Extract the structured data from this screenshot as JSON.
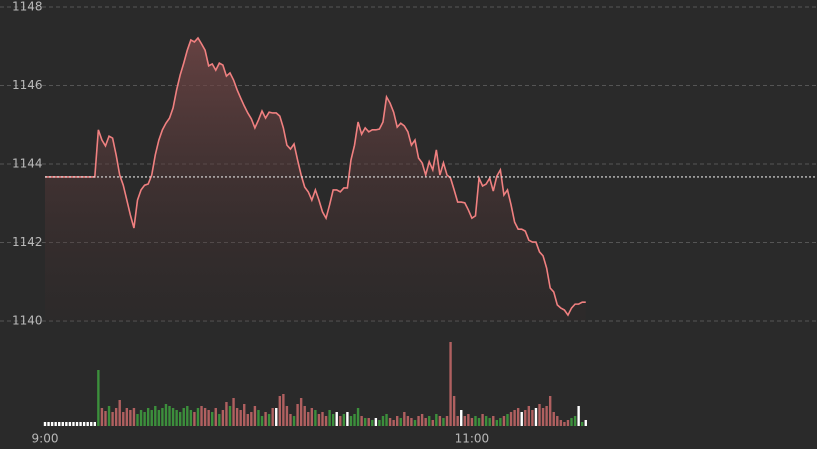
{
  "chart_data": {
    "type": "stock",
    "ylim": [
      1140,
      1148
    ],
    "yticks": [
      1140,
      1142,
      1144,
      1146,
      1148
    ],
    "grid": true,
    "xlim": [
      0,
      217
    ],
    "xticks": [
      {
        "value": 0,
        "label": "9:00"
      },
      {
        "value": 120,
        "label": "11:00"
      }
    ],
    "baseline": 1143.67,
    "color": "#f08080",
    "up_color": "#3c8f3c",
    "down_color": "#b06060",
    "flat_color": "#ffffff",
    "values": [
      1143.67,
      1143.67,
      1143.67,
      1143.67,
      1143.67,
      1143.67,
      1143.67,
      1143.67,
      1143.67,
      1143.67,
      1143.67,
      1143.67,
      1143.67,
      1143.67,
      1143.67,
      1144.87,
      1144.61,
      1144.46,
      1144.71,
      1144.66,
      1144.23,
      1143.72,
      1143.46,
      1143.08,
      1142.7,
      1142.37,
      1143.08,
      1143.34,
      1143.46,
      1143.49,
      1143.72,
      1144.23,
      1144.61,
      1144.87,
      1145.04,
      1145.17,
      1145.43,
      1145.89,
      1146.27,
      1146.57,
      1146.9,
      1147.16,
      1147.11,
      1147.21,
      1147.06,
      1146.9,
      1146.5,
      1146.55,
      1146.39,
      1146.57,
      1146.52,
      1146.24,
      1146.32,
      1146.14,
      1145.89,
      1145.68,
      1145.48,
      1145.3,
      1145.15,
      1144.92,
      1145.12,
      1145.35,
      1145.17,
      1145.32,
      1145.3,
      1145.3,
      1145.22,
      1144.92,
      1144.48,
      1144.38,
      1144.51,
      1144.1,
      1143.72,
      1143.41,
      1143.29,
      1143.08,
      1143.34,
      1143.08,
      1142.78,
      1142.62,
      1142.96,
      1143.34,
      1143.34,
      1143.29,
      1143.39,
      1143.39,
      1144.1,
      1144.48,
      1145.07,
      1144.76,
      1144.92,
      1144.82,
      1144.87,
      1144.87,
      1144.89,
      1145.07,
      1145.71,
      1145.55,
      1145.32,
      1144.94,
      1145.04,
      1144.97,
      1144.82,
      1144.48,
      1144.61,
      1144.15,
      1144.03,
      1143.72,
      1144.06,
      1143.85,
      1144.36,
      1143.72,
      1144.03,
      1143.72,
      1143.64,
      1143.34,
      1143.03,
      1143.03,
      1143.01,
      1142.83,
      1142.62,
      1142.68,
      1143.64,
      1143.44,
      1143.49,
      1143.64,
      1143.31,
      1143.69,
      1143.85,
      1143.21,
      1143.34,
      1142.96,
      1142.52,
      1142.34,
      1142.34,
      1142.29,
      1142.06,
      1142.01,
      1142.01,
      1141.76,
      1141.66,
      1141.35,
      1140.84,
      1140.74,
      1140.41,
      1140.33,
      1140.28,
      1140.15,
      1140.33,
      1140.43,
      1140.43,
      1140.48,
      1140.48
    ],
    "volume": [
      4,
      4,
      4,
      4,
      4,
      4,
      4,
      4,
      4,
      4,
      4,
      4,
      4,
      4,
      4,
      56,
      18,
      15,
      20,
      14,
      18,
      26,
      14,
      18,
      16,
      18,
      12,
      16,
      14,
      18,
      16,
      20,
      16,
      18,
      22,
      20,
      18,
      16,
      14,
      18,
      20,
      16,
      14,
      18,
      20,
      18,
      16,
      14,
      18,
      12,
      16,
      24,
      20,
      28,
      18,
      16,
      22,
      12,
      14,
      20,
      16,
      10,
      14,
      12,
      18,
      18,
      30,
      32,
      20,
      12,
      10,
      22,
      28,
      20,
      14,
      18,
      16,
      12,
      14,
      10,
      16,
      12,
      14,
      10,
      12,
      14,
      10,
      12,
      18,
      10,
      8,
      8,
      6,
      8,
      6,
      10,
      12,
      8,
      6,
      10,
      8,
      14,
      10,
      8,
      6,
      10,
      12,
      8,
      10,
      6,
      12,
      10,
      8,
      10,
      84,
      30,
      10,
      16,
      10,
      12,
      8,
      10,
      8,
      12,
      10,
      8,
      10,
      6,
      8,
      10,
      12,
      14,
      16,
      18,
      14,
      16,
      20,
      16,
      18,
      22,
      18,
      20,
      30,
      14,
      10,
      6,
      4,
      6,
      8,
      10,
      20,
      4,
      6
    ]
  }
}
